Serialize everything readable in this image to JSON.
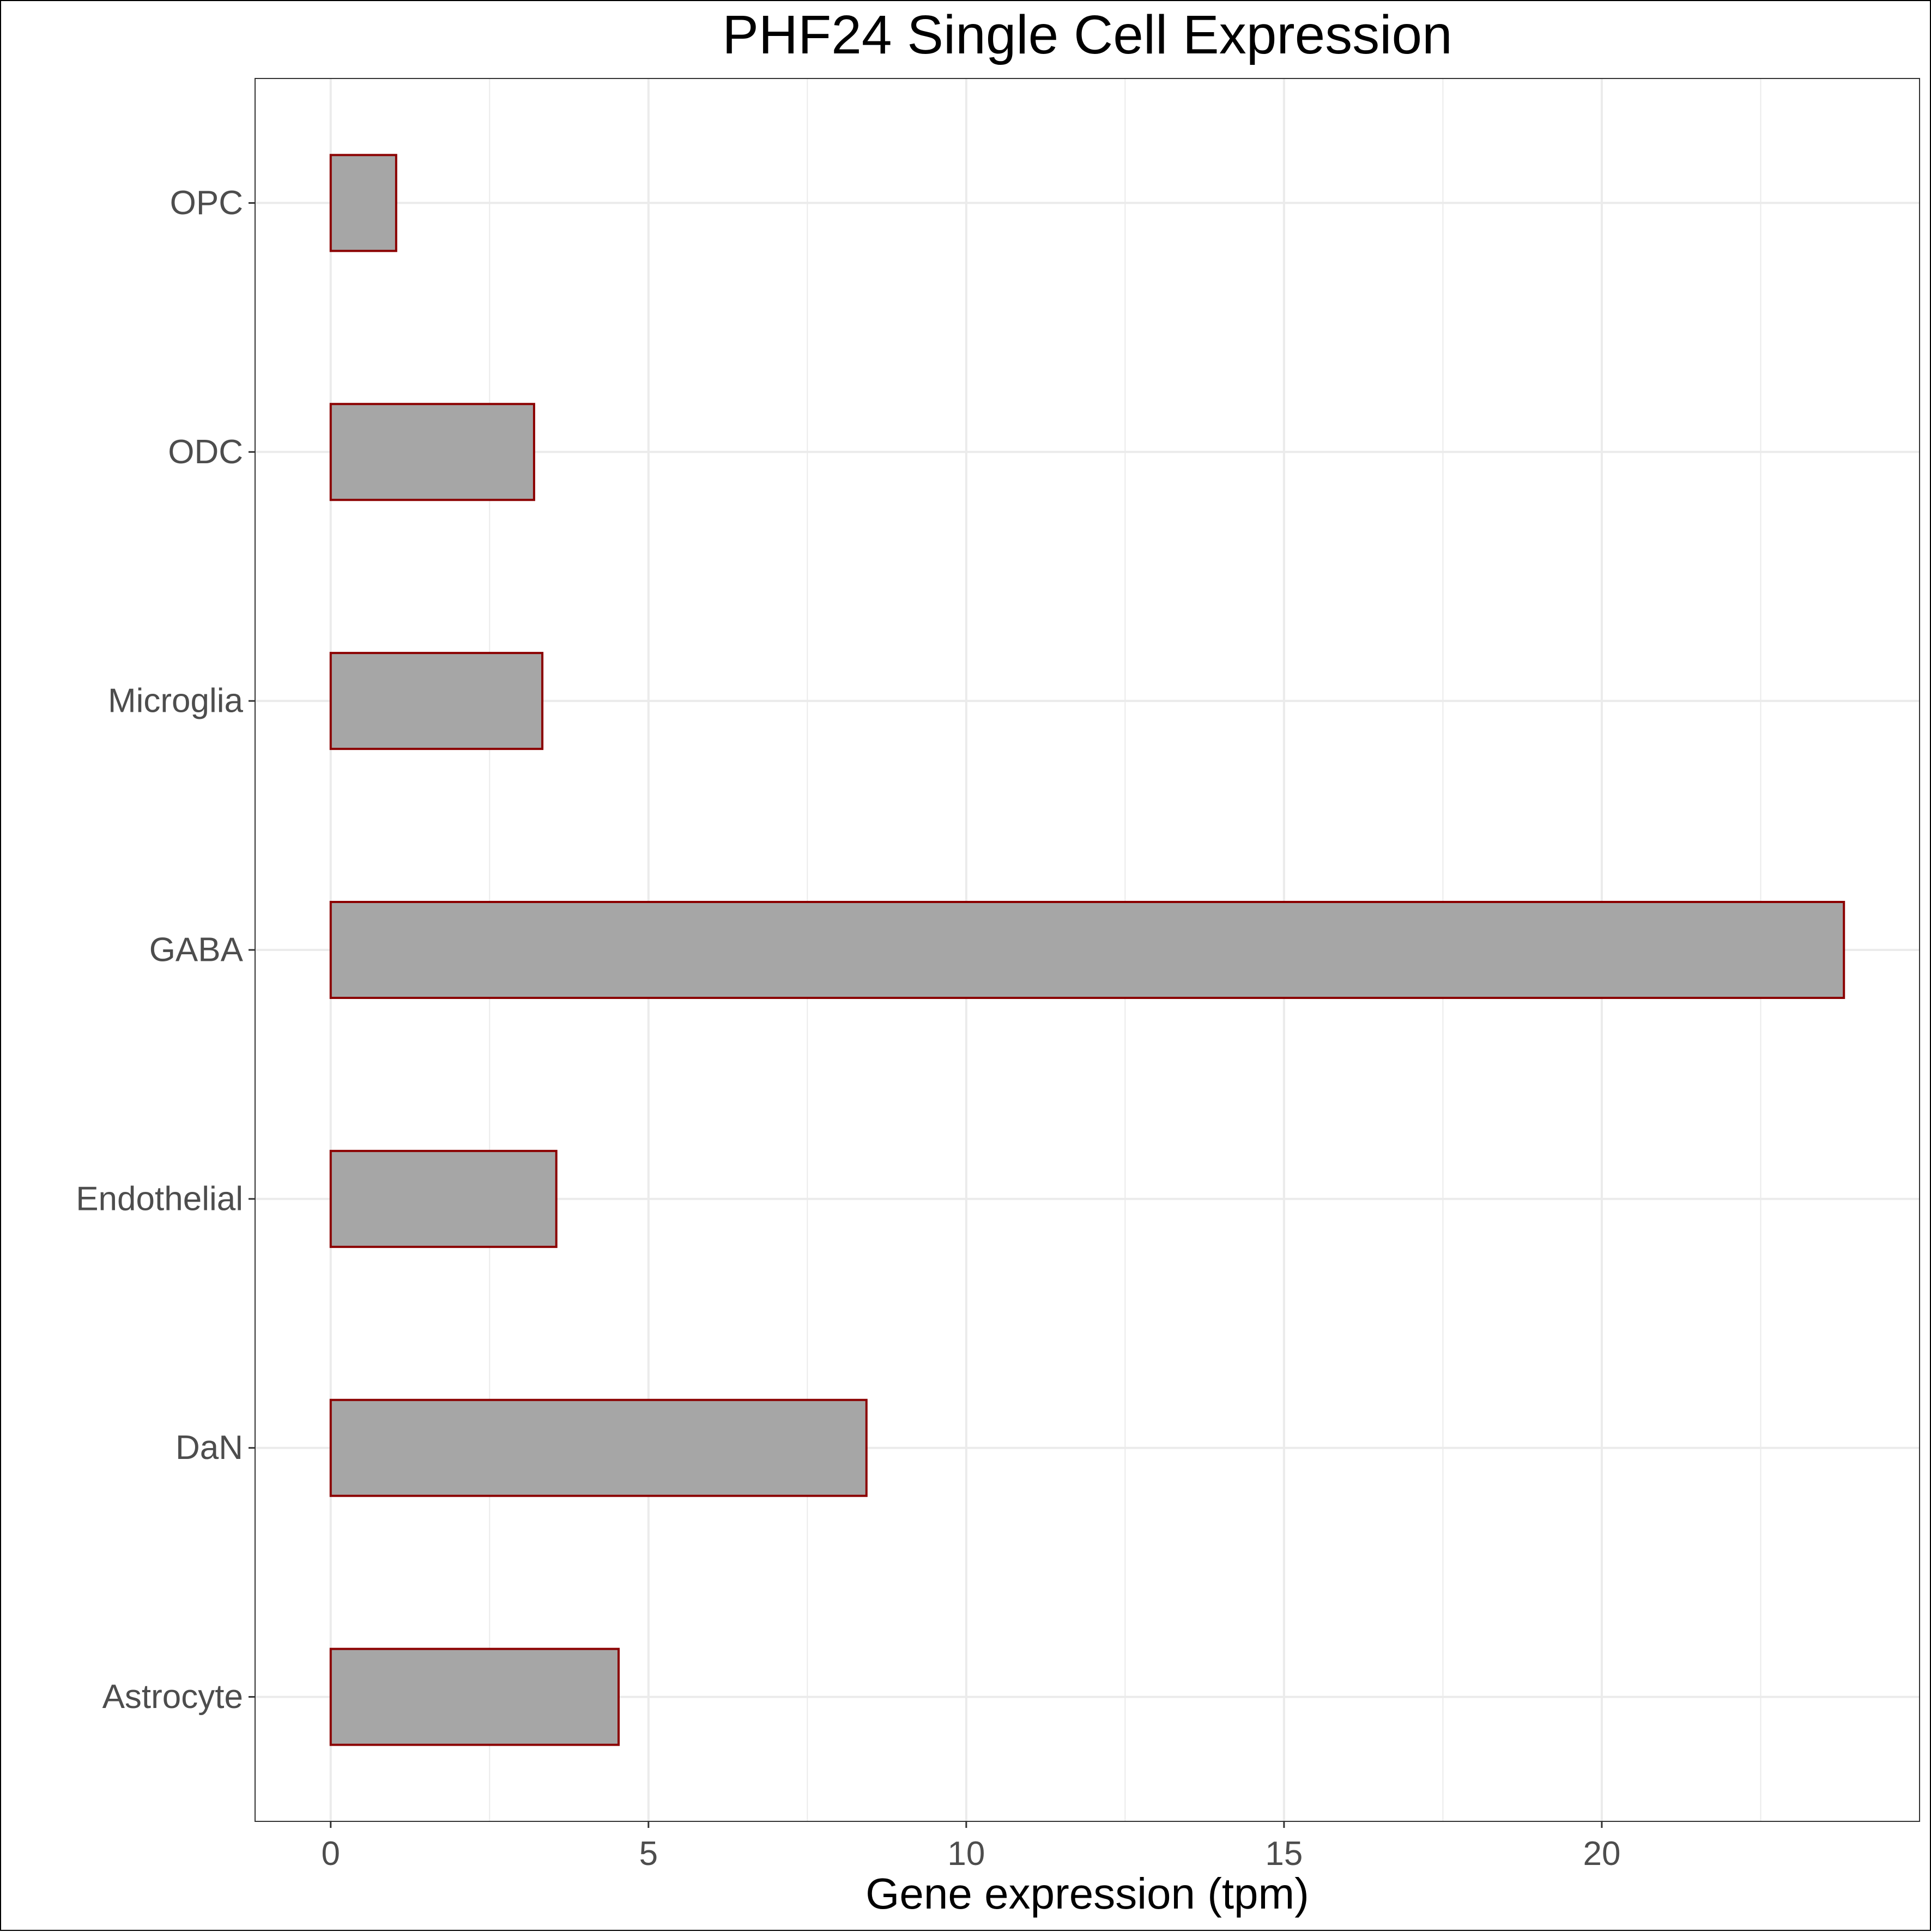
{
  "chart_data": {
    "type": "bar",
    "orientation": "horizontal",
    "title": "PHF24 Single Cell Expression",
    "xlabel": "Gene expression (tpm)",
    "ylabel": "",
    "categories": [
      "Astrocyte",
      "DaN",
      "Endothelial",
      "GABA",
      "Microglia",
      "ODC",
      "OPC"
    ],
    "values": [
      4.53,
      8.43,
      3.55,
      23.81,
      3.33,
      3.2,
      1.03
    ],
    "xlim": [
      -1.19,
      25.0
    ],
    "x_ticks": [
      0,
      5,
      10,
      15,
      20
    ],
    "x_tick_labels": [
      "0",
      "5",
      "10",
      "15",
      "20"
    ],
    "grid": true,
    "colors": {
      "bar_fill": "#a6a6a6",
      "bar_outline": "#8b0000",
      "grid": "#ebebeb",
      "panel_border": "#333333",
      "tick_label": "#4d4d4d"
    }
  }
}
